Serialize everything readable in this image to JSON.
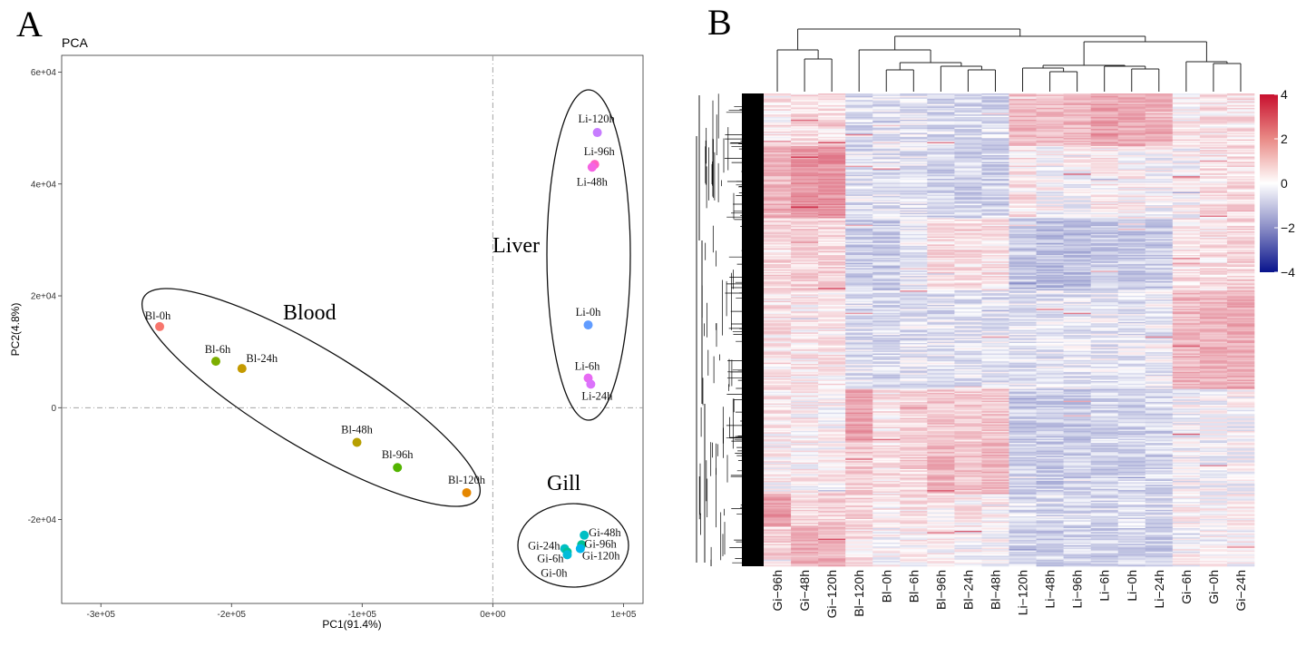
{
  "panel_a_letter": "A",
  "panel_b_letter": "B",
  "chart_data": [
    {
      "type": "scatter",
      "title": "PCA",
      "xlabel": "PC1(91.4%)",
      "ylabel": "PC2(4.8%)",
      "xlim": [
        -330000,
        115000
      ],
      "ylim": [
        -35000,
        63000
      ],
      "x_ticks": [
        {
          "v": -300000,
          "label": "-3e+05"
        },
        {
          "v": -200000,
          "label": "-2e+05"
        },
        {
          "v": -100000,
          "label": "-1e+05"
        },
        {
          "v": 0,
          "label": "0e+00"
        },
        {
          "v": 100000,
          "label": "1e+05"
        }
      ],
      "y_ticks": [
        {
          "v": -20000,
          "label": "-2e+04"
        },
        {
          "v": 0,
          "label": "0"
        },
        {
          "v": 20000,
          "label": "2e+04"
        },
        {
          "v": 40000,
          "label": "4e+04"
        },
        {
          "v": 60000,
          "label": "6e+04"
        }
      ],
      "reference_lines": {
        "x": 0,
        "y": 0
      },
      "points": [
        {
          "label": "Bl-0h",
          "x": -255000,
          "y": 14500,
          "color": "#f8766d"
        },
        {
          "label": "Bl-6h",
          "x": -212000,
          "y": 8300,
          "color": "#7cae00"
        },
        {
          "label": "Bl-24h",
          "x": -192000,
          "y": 7000,
          "color": "#c49a00"
        },
        {
          "label": "Bl-48h",
          "x": -104000,
          "y": -6200,
          "color": "#b79f00"
        },
        {
          "label": "Bl-96h",
          "x": -73000,
          "y": -10700,
          "color": "#53b400"
        },
        {
          "label": "Bl-120h",
          "x": -20000,
          "y": -15200,
          "color": "#e58700"
        },
        {
          "label": "Li-120h",
          "x": 80000,
          "y": 49200,
          "color": "#c77cff"
        },
        {
          "label": "Li-96h",
          "x": 78000,
          "y": 43500,
          "color": "#ff61c3"
        },
        {
          "label": "Li-48h",
          "x": 76000,
          "y": 43000,
          "color": "#f564e3"
        },
        {
          "label": "Li-0h",
          "x": 73000,
          "y": 14800,
          "color": "#619cff"
        },
        {
          "label": "Li-6h",
          "x": 73000,
          "y": 5300,
          "color": "#e76bf3"
        },
        {
          "label": "Li-24h",
          "x": 75000,
          "y": 4200,
          "color": "#db72fb"
        },
        {
          "label": "Gi-48h",
          "x": 70000,
          "y": -22800,
          "color": "#00bfc4"
        },
        {
          "label": "Gi-96h",
          "x": 68000,
          "y": -24500,
          "color": "#00c094"
        },
        {
          "label": "Gi-120h",
          "x": 67000,
          "y": -25200,
          "color": "#00b6eb"
        },
        {
          "label": "Gi-24h",
          "x": 55000,
          "y": -25200,
          "color": "#00bfc4"
        },
        {
          "label": "Gi-6h",
          "x": 57000,
          "y": -25800,
          "color": "#00c19a"
        },
        {
          "label": "Gi-0h",
          "x": 57000,
          "y": -26300,
          "color": "#00bcd8"
        }
      ],
      "groups": [
        "Blood",
        "Liver",
        "Gill"
      ]
    },
    {
      "type": "heatmap",
      "columns": [
        "Gi−96h",
        "Gi−48h",
        "Gi−120h",
        "Bl−120h",
        "Bl−0h",
        "Bl−6h",
        "Bl−96h",
        "Bl−24h",
        "Bl−48h",
        "Li−120h",
        "Li−48h",
        "Li−96h",
        "Li−6h",
        "Li−0h",
        "Li−24h",
        "Gi−6h",
        "Gi−0h",
        "Gi−24h"
      ],
      "colorbar": {
        "min": -4,
        "max": 4,
        "ticks": [
          "4",
          "2",
          "0",
          "−2",
          "−4"
        ],
        "colors": {
          "low": "#08138c",
          "mid": "#ffffff",
          "high": "#c8102e"
        }
      },
      "row_blocks": [
        {
          "rows": 40,
          "values": [
            0.2,
            0.4,
            0.4,
            -0.4,
            -0.3,
            -0.3,
            -0.4,
            -0.4,
            -0.4,
            0.9,
            0.8,
            0.9,
            1.2,
            1.1,
            1.0,
            0.2,
            0.3,
            0.3
          ]
        },
        {
          "rows": 55,
          "values": [
            0.9,
            1.4,
            1.5,
            -0.3,
            -0.3,
            -0.3,
            -0.5,
            -0.5,
            -0.5,
            0.3,
            0.0,
            0.0,
            0.2,
            0.1,
            0.0,
            0.0,
            0.3,
            0.4
          ]
        },
        {
          "rows": 55,
          "values": [
            0.4,
            0.5,
            0.5,
            -0.6,
            -0.6,
            -0.2,
            0.4,
            0.4,
            0.3,
            -0.6,
            -0.8,
            -0.8,
            -0.6,
            -0.6,
            -0.6,
            0.3,
            0.3,
            0.5
          ]
        },
        {
          "rows": 75,
          "values": [
            0.3,
            0.2,
            0.2,
            -0.3,
            -0.4,
            -0.3,
            -0.3,
            -0.3,
            -0.3,
            -0.3,
            -0.3,
            -0.3,
            -0.2,
            -0.3,
            -0.2,
            0.9,
            1.0,
            1.1
          ]
        },
        {
          "rows": 40,
          "values": [
            0.2,
            0.1,
            0.1,
            1.3,
            0.3,
            0.4,
            0.7,
            0.6,
            0.7,
            -0.6,
            -0.6,
            -0.6,
            -0.5,
            -0.5,
            -0.5,
            -0.1,
            -0.1,
            0.0
          ]
        },
        {
          "rows": 40,
          "values": [
            0.1,
            0.1,
            0.1,
            0.6,
            0.3,
            0.5,
            0.9,
            0.8,
            0.9,
            -0.6,
            -0.6,
            -0.6,
            -0.5,
            -0.5,
            -0.5,
            -0.1,
            -0.1,
            0.0
          ]
        },
        {
          "rows": 25,
          "values": [
            1.4,
            0.5,
            0.6,
            0.5,
            0.2,
            0.3,
            0.2,
            0.2,
            0.2,
            -0.4,
            -0.4,
            -0.4,
            -0.4,
            -0.4,
            -0.4,
            0.1,
            0.0,
            0.1
          ]
        },
        {
          "rows": 30,
          "values": [
            0.5,
            1.0,
            1.0,
            0.3,
            0.0,
            0.1,
            0.1,
            0.0,
            0.0,
            -0.5,
            -0.5,
            -0.5,
            -0.5,
            -0.5,
            -0.5,
            0.0,
            0.0,
            0.0
          ]
        }
      ],
      "dendrogram_clusters": [
        [
          [
            0,
            1,
            2
          ]
        ],
        [
          [
            3
          ],
          [
            4,
            5
          ],
          [
            6,
            7,
            8
          ]
        ],
        [
          [
            9,
            10,
            11
          ],
          [
            12,
            13,
            14
          ]
        ],
        [
          [
            15,
            16,
            17
          ]
        ]
      ]
    }
  ]
}
